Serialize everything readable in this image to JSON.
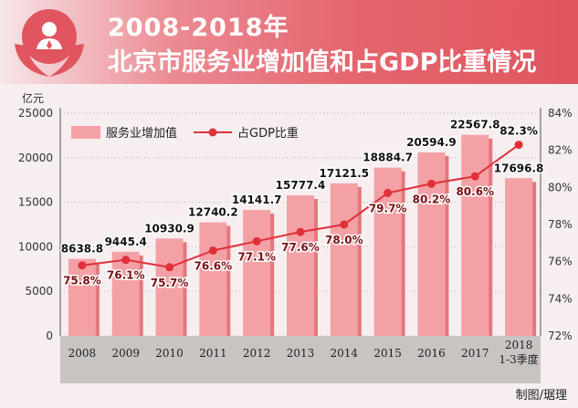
{
  "header": {
    "title_line1": "2008-2018年",
    "title_line2": "北京市服务业增加值和占GDP比重情况"
  },
  "credit": "制图/琚理",
  "colors": {
    "bar": "#f4a1a5",
    "bar_shadow": "#e2787e",
    "line": "#e0303a",
    "axis_band": "#c8c4c2"
  },
  "chart_data": {
    "type": "bar+line",
    "categories": [
      "2008",
      "2009",
      "2010",
      "2011",
      "2012",
      "2013",
      "2014",
      "2015",
      "2016",
      "2017",
      "2018\n1-3季度"
    ],
    "series": [
      {
        "name": "服务业增加值",
        "type": "bar",
        "axis": "left",
        "values": [
          8638.8,
          9445.4,
          10930.9,
          12740.2,
          14141.7,
          15777.4,
          17121.5,
          18884.7,
          20594.9,
          22567.8,
          17696.8
        ],
        "labels": [
          "8638.8",
          "9445.4",
          "10930.9",
          "12740.2",
          "14141.7",
          "15777.4",
          "17121.5",
          "18884.7",
          "20594.9",
          "22567.8",
          "17696.8"
        ]
      },
      {
        "name": "占GDP比重",
        "type": "line",
        "axis": "right",
        "values": [
          75.8,
          76.1,
          75.7,
          76.6,
          77.1,
          77.6,
          78.0,
          79.7,
          80.2,
          80.6,
          82.3
        ],
        "labels": [
          "75.8%",
          "76.1%",
          "75.7%",
          "76.6%",
          "77.1%",
          "77.6%",
          "78.0%",
          "79.7%",
          "80.2%",
          "80.6%",
          "82.3%"
        ]
      }
    ],
    "yleft": {
      "label": "亿元",
      "min": 0,
      "max": 25000,
      "ticks": [
        0,
        5000,
        10000,
        15000,
        20000,
        25000
      ]
    },
    "yright": {
      "min": 72,
      "max": 84,
      "ticks": [
        "72%",
        "74%",
        "76%",
        "78%",
        "80%",
        "82%",
        "84%"
      ]
    },
    "legend": {
      "bar": "服务业增加值",
      "line": "占GDP比重",
      "position": "top-left"
    }
  }
}
